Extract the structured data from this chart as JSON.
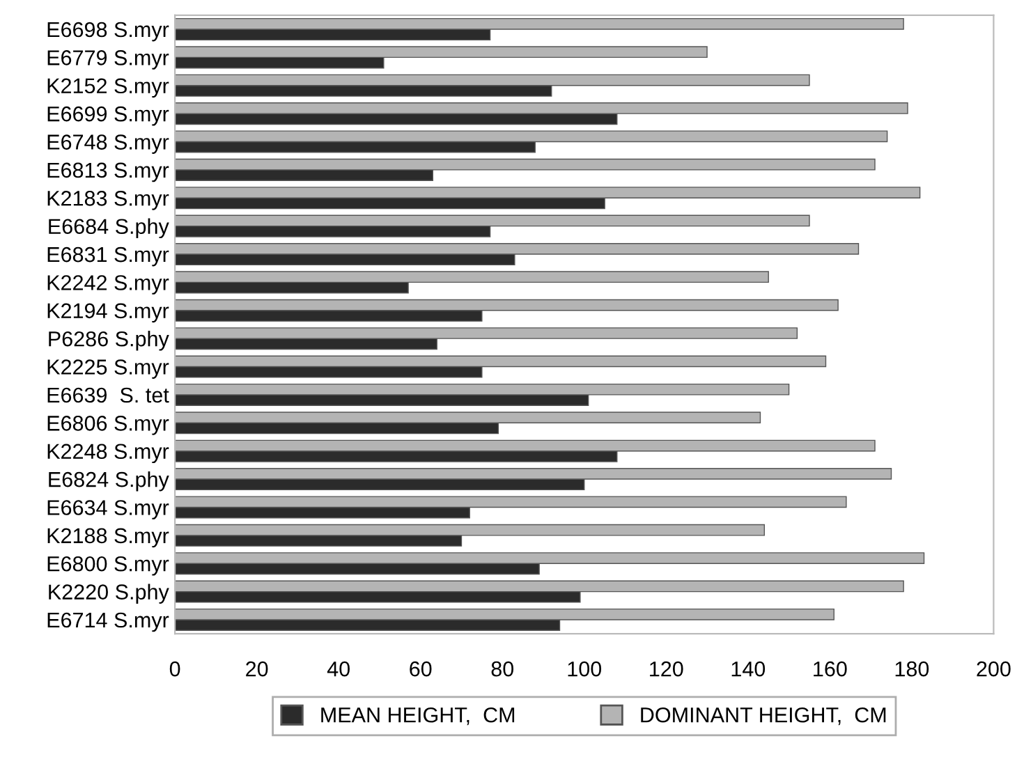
{
  "chart_data": {
    "type": "bar",
    "orientation": "horizontal",
    "categories": [
      "E6698 S.myr",
      "E6779 S.myr",
      "K2152 S.myr",
      "E6699 S.myr",
      "E6748 S.myr",
      "E6813 S.myr",
      "K2183 S.myr",
      "E6684 S.phy",
      "E6831 S.myr",
      "K2242 S.myr",
      "K2194 S.myr",
      "P6286 S.phy",
      "K2225 S.myr",
      "E6639  S. tet",
      "E6806 S.myr",
      "K2248 S.myr",
      "E6824 S.phy",
      "E6634 S.myr",
      "K2188 S.myr",
      "E6800 S.myr",
      "K2220 S.phy",
      "E6714 S.myr"
    ],
    "series": [
      {
        "name": "MEAN HEIGHT,  CM",
        "color": "#2b2b2b",
        "values": [
          77,
          51,
          92,
          108,
          88,
          63,
          105,
          77,
          83,
          57,
          75,
          64,
          75,
          101,
          79,
          108,
          100,
          72,
          70,
          89,
          99,
          94
        ]
      },
      {
        "name": "DOMINANT HEIGHT,  CM",
        "color": "#b4b4b4",
        "values": [
          178,
          130,
          155,
          179,
          174,
          171,
          182,
          155,
          167,
          145,
          162,
          152,
          159,
          150,
          143,
          171,
          175,
          164,
          144,
          183,
          178,
          161
        ]
      }
    ],
    "xlim": [
      0,
      200
    ],
    "xticks": [
      0,
      20,
      40,
      60,
      80,
      100,
      120,
      140,
      160,
      180,
      200
    ],
    "grid": false,
    "legend": "bottom"
  }
}
